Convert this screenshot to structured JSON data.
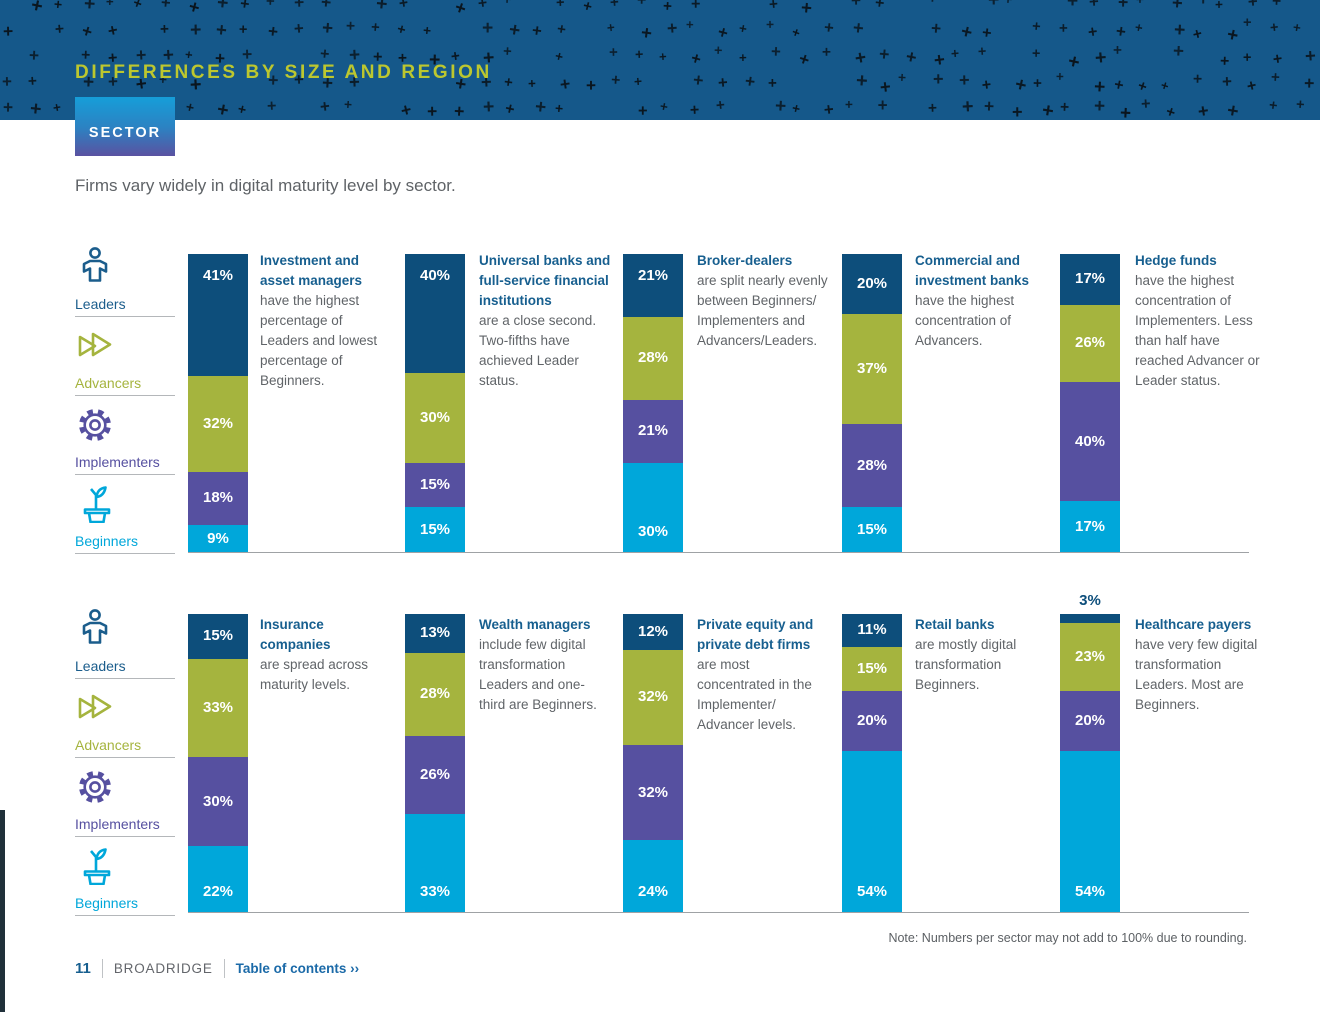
{
  "header": {
    "title": "DIFFERENCES BY SIZE AND REGION",
    "tab_label": "SECTOR"
  },
  "intro": "Firms vary widely in digital maturity level by sector.",
  "legend": {
    "items": [
      {
        "label": "Leaders",
        "icon": "leader-person-icon",
        "color": "#1b5d8c"
      },
      {
        "label": "Advancers",
        "icon": "advancer-forward-icon",
        "color": "#a5b43e"
      },
      {
        "label": "Implementers",
        "icon": "implementer-gear-icon",
        "color": "#5650a0"
      },
      {
        "label": "Beginners",
        "icon": "beginner-seedling-icon",
        "color": "#00a7da"
      }
    ]
  },
  "chart_data": {
    "type": "bar",
    "stacked": true,
    "unit": "percent",
    "categories": [
      "Leaders",
      "Advancers",
      "Implementers",
      "Beginners"
    ],
    "series_colors": [
      "#0d4e7b",
      "#a5b43e",
      "#5650a0",
      "#00a7da"
    ],
    "rows": [
      [
        {
          "sector": "Investment and asset managers",
          "description": "have the highest percentage of Leaders and lowest percentage of Beginners.",
          "values": [
            41,
            32,
            18,
            9
          ]
        },
        {
          "sector": "Universal banks and full-service financial institutions",
          "description": "are a close second. Two-fifths have achieved Leader status.",
          "values": [
            40,
            30,
            15,
            15
          ]
        },
        {
          "sector": "Broker-dealers",
          "description": "are split nearly evenly between Beginners/ Implementers and Advancers/Leaders.",
          "values": [
            21,
            28,
            21,
            30
          ]
        },
        {
          "sector": "Commercial and investment banks",
          "description": "have the highest concentration of Advancers.",
          "values": [
            20,
            37,
            28,
            15
          ]
        },
        {
          "sector": "Hedge funds",
          "description": "have the highest concentration of Implementers. Less than half have reached Advancer or Leader status.",
          "values": [
            17,
            26,
            40,
            17
          ]
        }
      ],
      [
        {
          "sector": "Insurance companies",
          "description": "are spread across maturity levels.",
          "values": [
            15,
            33,
            30,
            22
          ]
        },
        {
          "sector": "Wealth managers",
          "description": "include few digital transformation Leaders and one-third are Beginners.",
          "values": [
            13,
            28,
            26,
            33
          ]
        },
        {
          "sector": "Private equity and private debt firms",
          "description": "are most concentrated in the Implementer/ Advancer levels.",
          "values": [
            12,
            32,
            32,
            24
          ]
        },
        {
          "sector": "Retail banks",
          "description": "are mostly digital transformation Beginners.",
          "values": [
            11,
            15,
            20,
            54
          ]
        },
        {
          "sector": "Healthcare payers",
          "description": "have very few digital transformation Leaders. Most are Beginners.",
          "values": [
            3,
            23,
            20,
            54
          ],
          "outside_labels": [
            0
          ]
        }
      ]
    ]
  },
  "note": "Note: Numbers per sector may not add to 100% due to rounding.",
  "footer": {
    "page_number": "11",
    "brand": "BROADRIDGE",
    "toc_link": "Table of contents ››"
  }
}
